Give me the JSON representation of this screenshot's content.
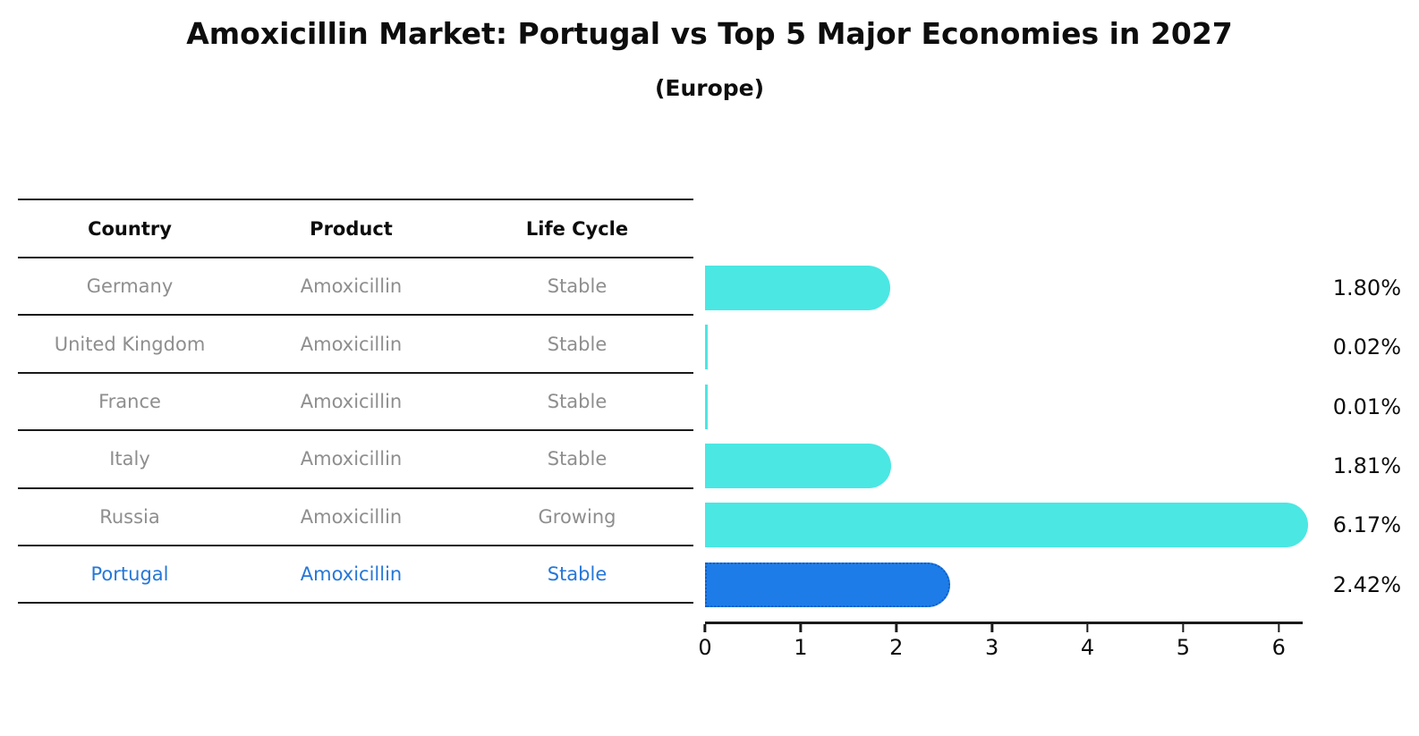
{
  "header": {
    "title": "Amoxicillin Market: Portugal vs Top 5 Major Economies in 2027",
    "subtitle": "(Europe)"
  },
  "table": {
    "headers": [
      "Country",
      "Product",
      "Life Cycle"
    ],
    "rows": [
      {
        "country": "Germany",
        "product": "Amoxicillin",
        "life_cycle": "Stable",
        "highlighted": false
      },
      {
        "country": "United Kingdom",
        "product": "Amoxicillin",
        "life_cycle": "Stable",
        "highlighted": false
      },
      {
        "country": "France",
        "product": "Amoxicillin",
        "life_cycle": "Stable",
        "highlighted": false
      },
      {
        "country": "Italy",
        "product": "Amoxicillin",
        "life_cycle": "Stable",
        "highlighted": false
      },
      {
        "country": "Russia",
        "product": "Amoxicillin",
        "life_cycle": "Growing",
        "highlighted": false
      },
      {
        "country": "Portugal",
        "product": "Amoxicillin",
        "life_cycle": "Stable",
        "highlighted": true
      }
    ]
  },
  "chart_data": {
    "type": "bar",
    "orientation": "horizontal",
    "title": "Amoxicillin Market: Portugal vs Top 5 Major Economies in 2027",
    "subtitle": "(Europe)",
    "categories": [
      "Germany",
      "United Kingdom",
      "France",
      "Italy",
      "Russia",
      "Portugal"
    ],
    "values": [
      1.8,
      0.02,
      0.01,
      1.81,
      6.17,
      2.42
    ],
    "value_labels": [
      "1.80%",
      "0.02%",
      "0.01%",
      "1.81%",
      "6.17%",
      "2.42%"
    ],
    "x_ticks": [
      "0",
      "1",
      "2",
      "3",
      "4",
      "5",
      "6"
    ],
    "xlim": [
      0,
      6.25
    ],
    "grid": false,
    "legend": false,
    "highlight_index": 5,
    "bar_colors": [
      "#4BE7E3",
      "#4BE7E3",
      "#4BE7E3",
      "#4BE7E3",
      "#4BE7E3",
      "#1D7CE8"
    ]
  },
  "colors": {
    "bar_default": "#4BE7E3",
    "bar_highlight": "#1D7CE8",
    "bar_highlight_border": "#0D5FC9",
    "highlight_text": "#2577D8",
    "table_text": "#8E8E8E",
    "heading_text": "#0D0D0D",
    "line": "#1A1A1A"
  }
}
